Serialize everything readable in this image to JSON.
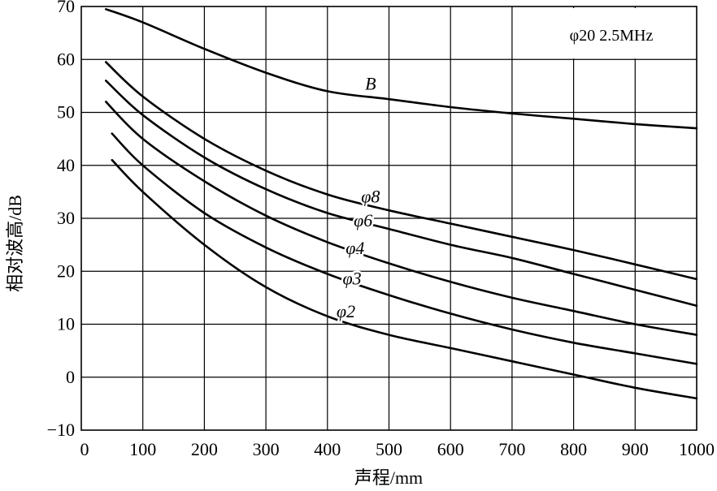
{
  "chart_data": {
    "type": "line",
    "xlabel": "声程/mm",
    "ylabel": "相对波高/dB",
    "xlim": [
      0,
      1000
    ],
    "ylim": [
      -10,
      70
    ],
    "grid": true,
    "annotation": "φ20  2.5MHz",
    "x_ticks": [
      "0",
      "100",
      "200",
      "300",
      "400",
      "500",
      "600",
      "700",
      "800",
      "900",
      "1000"
    ],
    "y_ticks": [
      "70",
      "60",
      "50",
      "40",
      "30",
      "20",
      "10",
      "0",
      "−10"
    ],
    "series": [
      {
        "name": "B",
        "x": [
          40,
          100,
          200,
          300,
          400,
          500,
          600,
          700,
          800,
          900,
          1000
        ],
        "y": [
          69.5,
          67,
          62,
          57.5,
          54,
          52.5,
          51,
          49.8,
          48.8,
          47.8,
          47
        ]
      },
      {
        "name": "φ8",
        "x": [
          40,
          100,
          200,
          300,
          400,
          500,
          600,
          700,
          800,
          900,
          1000
        ],
        "y": [
          59.5,
          53,
          45,
          39,
          34.5,
          31.5,
          29,
          26.5,
          24,
          21.3,
          18.5
        ]
      },
      {
        "name": "φ6",
        "x": [
          40,
          100,
          200,
          300,
          400,
          500,
          600,
          700,
          800,
          900,
          1000
        ],
        "y": [
          56,
          49.5,
          41.5,
          35.5,
          31,
          28,
          25,
          22.5,
          19.5,
          16.5,
          13.5
        ]
      },
      {
        "name": "φ4",
        "x": [
          40,
          100,
          200,
          300,
          400,
          500,
          600,
          700,
          800,
          900,
          1000
        ],
        "y": [
          52,
          45,
          37,
          30.5,
          25.5,
          21.5,
          18,
          15,
          12.5,
          10,
          8
        ]
      },
      {
        "name": "φ3",
        "x": [
          50,
          100,
          200,
          300,
          400,
          500,
          600,
          700,
          800,
          900,
          1000
        ],
        "y": [
          46,
          40,
          31,
          24.5,
          19.5,
          15.5,
          12,
          9,
          6.5,
          4.5,
          2.5
        ]
      },
      {
        "name": "φ2",
        "x": [
          50,
          100,
          200,
          300,
          400,
          500,
          600,
          700,
          800,
          900,
          1000
        ],
        "y": [
          41,
          35,
          25,
          17,
          11.5,
          8,
          5.5,
          3,
          0.5,
          -2,
          -4
        ]
      }
    ],
    "labels": [
      {
        "text": "B",
        "x": 470,
        "y": 55.5
      },
      {
        "text": "φ8",
        "x": 470,
        "y": 34.2
      },
      {
        "text": "φ6",
        "x": 458,
        "y": 29.7
      },
      {
        "text": "φ4",
        "x": 445,
        "y": 24.5
      },
      {
        "text": "φ3",
        "x": 440,
        "y": 18.7
      },
      {
        "text": "φ2",
        "x": 430,
        "y": 12.5
      }
    ]
  }
}
